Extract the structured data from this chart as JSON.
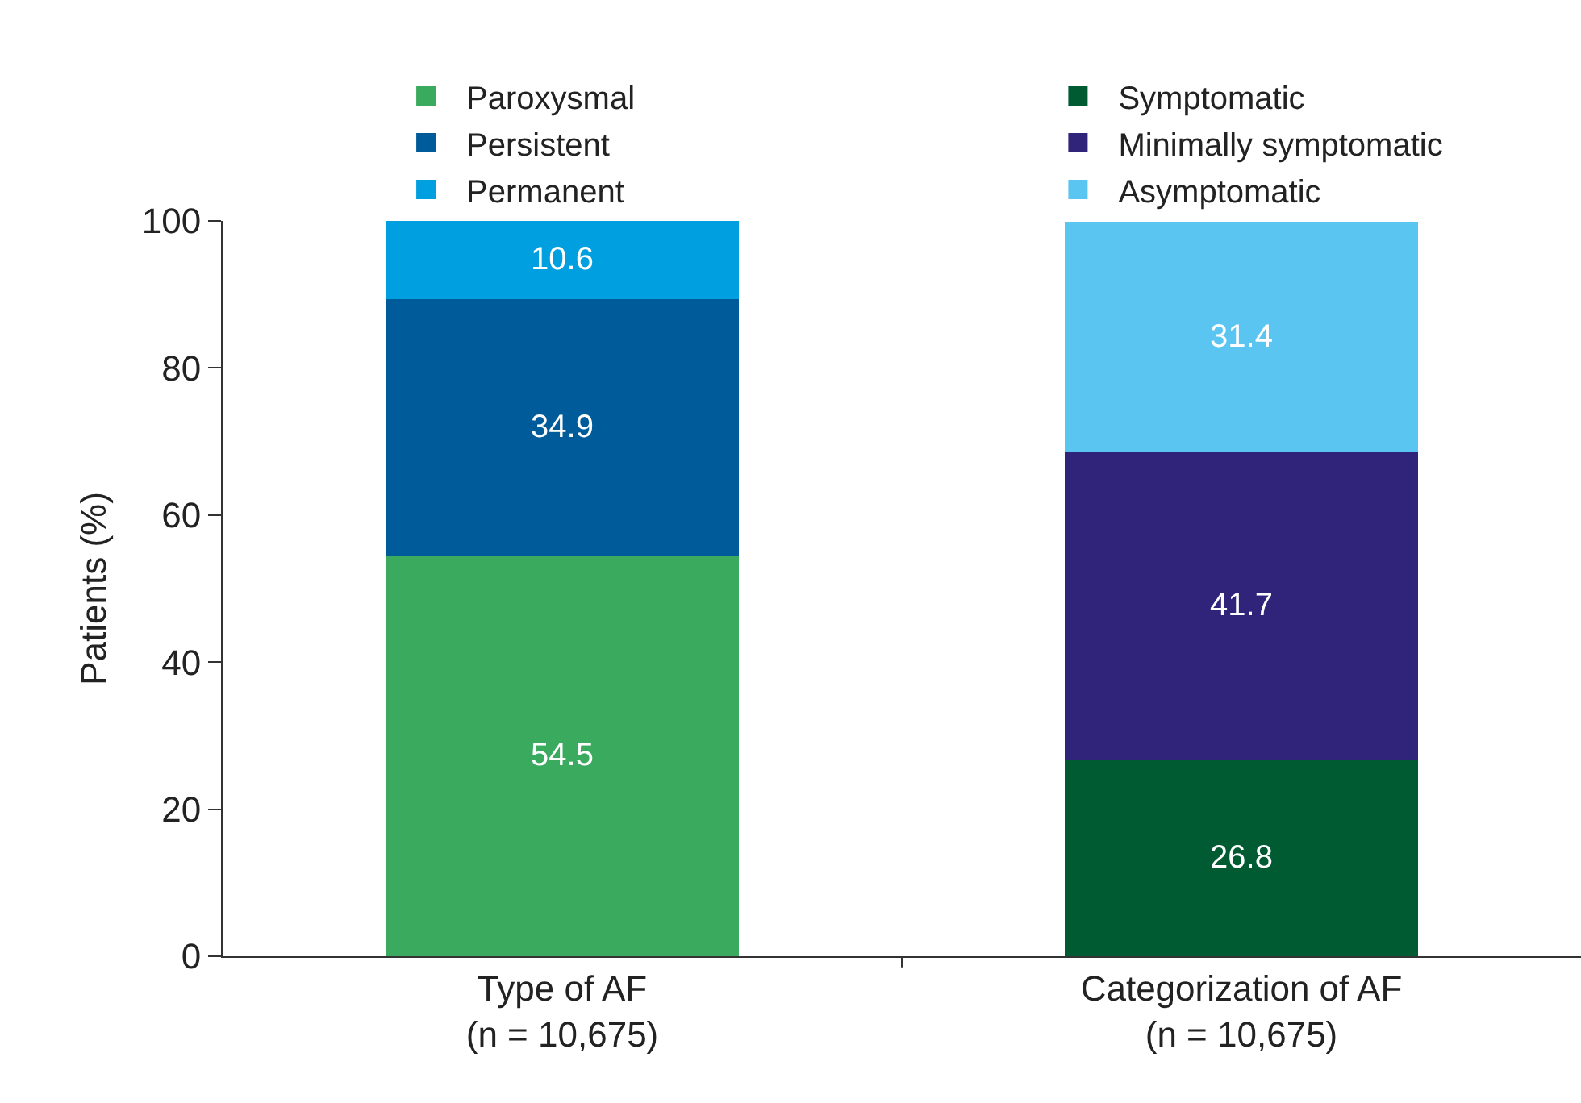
{
  "chart_data": {
    "type": "bar",
    "stacked": true,
    "ylabel": "Patients (%)",
    "categories": [
      "Type of AF\n(n = 10,675)",
      "Categorization of AF\n(n = 10,675)"
    ],
    "series": [
      {
        "name": "Paroxysmal",
        "color": "#3aaa5f",
        "values": [
          54.5,
          null
        ]
      },
      {
        "name": "Persistent",
        "color": "#005b9a",
        "values": [
          34.9,
          null
        ]
      },
      {
        "name": "Permanent",
        "color": "#00a0e0",
        "values": [
          10.6,
          null
        ]
      },
      {
        "name": "Symptomatic",
        "color": "#005a32",
        "values": [
          null,
          26.8
        ]
      },
      {
        "name": "Minimally symptomatic",
        "color": "#30237a",
        "values": [
          null,
          41.7
        ]
      },
      {
        "name": "Asymptomatic",
        "color": "#5bc5f2",
        "values": [
          null,
          31.4
        ]
      }
    ],
    "ylim": [
      0,
      100
    ],
    "yticks": [
      0,
      20,
      40,
      60,
      80,
      100
    ],
    "legend": "top",
    "data_labels": true
  }
}
